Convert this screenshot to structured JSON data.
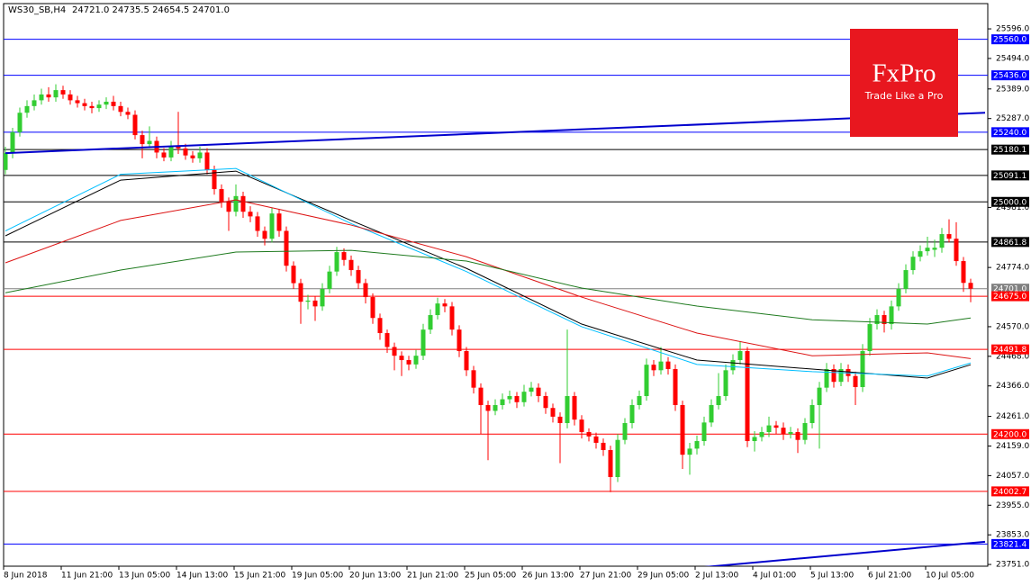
{
  "chart_data": {
    "type": "candlestick",
    "title": "WS30_SB,H4",
    "subtitle": "24721.0 24735.5 24654.5 24701.0",
    "logo": {
      "brand": "FxPro",
      "tagline": "Trade Like a Pro"
    },
    "ylim": [
      23745,
      25683
    ],
    "yticks": [
      {
        "value": 25596,
        "label": "25596.0"
      },
      {
        "value": 25494,
        "label": "25494.0"
      },
      {
        "value": 25389,
        "label": "25389.0"
      },
      {
        "value": 25287,
        "label": "25287.0"
      },
      {
        "value": 24981,
        "label": "24981.0"
      },
      {
        "value": 24774,
        "label": "24774.0"
      },
      {
        "value": 24570,
        "label": "24570.0"
      },
      {
        "value": 24468,
        "label": "24468.0"
      },
      {
        "value": 24366,
        "label": "24366.0"
      },
      {
        "value": 24261,
        "label": "24261.0"
      },
      {
        "value": 24159,
        "label": "24159.0"
      },
      {
        "value": 24057,
        "label": "24057.0"
      },
      {
        "value": 23955,
        "label": "23955.0"
      },
      {
        "value": 23853,
        "label": "23853.0"
      },
      {
        "value": 23751,
        "label": "23751.0"
      }
    ],
    "up_color": "#32cd32",
    "down_color": "#ff0000",
    "categories": [
      "8 Jun 2018",
      null,
      null,
      null,
      null,
      null,
      null,
      null,
      "11 Jun 21:00",
      null,
      null,
      null,
      null,
      null,
      null,
      null,
      "13 Jun 05:00",
      null,
      null,
      null,
      null,
      null,
      null,
      null,
      "14 Jun 13:00",
      null,
      null,
      null,
      null,
      null,
      null,
      null,
      "15 Jun 21:00",
      null,
      null,
      null,
      null,
      null,
      null,
      null,
      "19 Jun 05:00",
      null,
      null,
      null,
      null,
      null,
      null,
      null,
      "20 Jun 13:00",
      null,
      null,
      null,
      null,
      null,
      null,
      null,
      "21 Jun 21:00",
      null,
      null,
      null,
      null,
      null,
      null,
      null,
      "25 Jun 05:00",
      null,
      null,
      null,
      null,
      null,
      null,
      null,
      "26 Jun 13:00",
      null,
      null,
      null,
      null,
      null,
      null,
      null,
      "27 Jun 21:00",
      null,
      null,
      null,
      null,
      null,
      null,
      null,
      "29 Jun 05:00",
      null,
      null,
      null,
      null,
      null,
      null,
      null,
      "2 Jul 13:00",
      null,
      null,
      null,
      null,
      null,
      null,
      null,
      "4 Jul 01:00",
      null,
      null,
      null,
      null,
      null,
      null,
      null,
      "5 Jul 13:00",
      null,
      null,
      null,
      null,
      null,
      null,
      null,
      "6 Jul 21:00",
      null,
      null,
      null,
      null,
      null,
      null,
      null,
      "10 Jul 05:00",
      null,
      null,
      null,
      null,
      null,
      null
    ],
    "candles": [
      [
        25110,
        25190,
        25095,
        25168
      ],
      [
        25168,
        25255,
        25150,
        25240
      ],
      [
        25240,
        25325,
        25225,
        25307
      ],
      [
        25307,
        25350,
        25290,
        25330
      ],
      [
        25330,
        25370,
        25315,
        25350
      ],
      [
        25350,
        25390,
        25335,
        25370
      ],
      [
        25370,
        25395,
        25345,
        25360
      ],
      [
        25360,
        25405,
        25345,
        25385
      ],
      [
        25385,
        25400,
        25355,
        25370
      ],
      [
        25370,
        25385,
        25335,
        25350
      ],
      [
        25350,
        25365,
        25325,
        25340
      ],
      [
        25340,
        25355,
        25315,
        25330
      ],
      [
        25330,
        25345,
        25305,
        25323
      ],
      [
        25323,
        25350,
        25310,
        25335
      ],
      [
        25335,
        25360,
        25320,
        25345
      ],
      [
        25345,
        25365,
        25315,
        25330
      ],
      [
        25330,
        25345,
        25295,
        25310
      ],
      [
        25310,
        25325,
        25285,
        25300
      ],
      [
        25300,
        25315,
        25215,
        25230
      ],
      [
        25230,
        25245,
        25150,
        25199
      ],
      [
        25199,
        25260,
        25185,
        25210
      ],
      [
        25210,
        25225,
        25150,
        25170
      ],
      [
        25170,
        25185,
        25140,
        25153
      ],
      [
        25153,
        25210,
        25140,
        25190
      ],
      [
        25190,
        25310,
        25165,
        25184
      ],
      [
        25184,
        25200,
        25145,
        25160
      ],
      [
        25160,
        25175,
        25135,
        25150
      ],
      [
        25150,
        25190,
        25135,
        25170
      ],
      [
        25170,
        25185,
        25095,
        25110
      ],
      [
        25110,
        25125,
        25025,
        25044
      ],
      [
        25044,
        25060,
        24980,
        25000
      ],
      [
        25000,
        25015,
        24900,
        24966
      ],
      [
        24966,
        25060,
        24950,
        25020
      ],
      [
        25020,
        25035,
        24945,
        24966
      ],
      [
        24966,
        24985,
        24930,
        24950
      ],
      [
        24950,
        24965,
        24880,
        24900
      ],
      [
        24900,
        24915,
        24850,
        24873
      ],
      [
        24873,
        24980,
        24860,
        24960
      ],
      [
        24960,
        24975,
        24880,
        24900
      ],
      [
        24900,
        24915,
        24760,
        24780
      ],
      [
        24780,
        24795,
        24700,
        24720
      ],
      [
        24720,
        24735,
        24580,
        24656
      ],
      [
        24656,
        24680,
        24630,
        24660
      ],
      [
        24660,
        24675,
        24590,
        24640
      ],
      [
        24640,
        24720,
        24625,
        24700
      ],
      [
        24700,
        24780,
        24685,
        24760
      ],
      [
        24760,
        24845,
        24745,
        24827
      ],
      [
        24827,
        24840,
        24780,
        24800
      ],
      [
        24800,
        24815,
        24745,
        24765
      ],
      [
        24765,
        24780,
        24700,
        24720
      ],
      [
        24720,
        24735,
        24650,
        24672
      ],
      [
        24672,
        24685,
        24580,
        24600
      ],
      [
        24600,
        24615,
        24525,
        24548
      ],
      [
        24548,
        24560,
        24480,
        24500
      ],
      [
        24500,
        24515,
        24420,
        24470
      ],
      [
        24470,
        24485,
        24400,
        24455
      ],
      [
        24455,
        24470,
        24420,
        24440
      ],
      [
        24440,
        24490,
        24425,
        24470
      ],
      [
        24470,
        24580,
        24455,
        24560
      ],
      [
        24560,
        24630,
        24545,
        24610
      ],
      [
        24610,
        24670,
        24595,
        24650
      ],
      [
        24650,
        24665,
        24620,
        24640
      ],
      [
        24640,
        24655,
        24540,
        24560
      ],
      [
        24560,
        24575,
        24465,
        24486
      ],
      [
        24486,
        24500,
        24400,
        24420
      ],
      [
        24420,
        24435,
        24340,
        24360
      ],
      [
        24360,
        24375,
        24200,
        24300
      ],
      [
        24300,
        24315,
        24110,
        24280
      ],
      [
        24280,
        24320,
        24265,
        24300
      ],
      [
        24300,
        24340,
        24285,
        24320
      ],
      [
        24320,
        24350,
        24305,
        24331
      ],
      [
        24331,
        24345,
        24290,
        24310
      ],
      [
        24310,
        24370,
        24295,
        24346
      ],
      [
        24346,
        24380,
        24330,
        24360
      ],
      [
        24360,
        24375,
        24310,
        24331
      ],
      [
        24331,
        24345,
        24270,
        24290
      ],
      [
        24290,
        24305,
        24240,
        24260
      ],
      [
        24260,
        24275,
        24100,
        24238
      ],
      [
        24238,
        24560,
        24220,
        24331
      ],
      [
        24331,
        24345,
        24230,
        24250
      ],
      [
        24250,
        24265,
        24185,
        24207
      ],
      [
        24207,
        24220,
        24175,
        24192
      ],
      [
        24192,
        24205,
        24150,
        24170
      ],
      [
        24170,
        24185,
        24125,
        24145
      ],
      [
        24145,
        24160,
        24000,
        24052
      ],
      [
        24052,
        24200,
        24035,
        24180
      ],
      [
        24180,
        24255,
        24165,
        24238
      ],
      [
        24238,
        24320,
        24220,
        24300
      ],
      [
        24300,
        24350,
        24285,
        24331
      ],
      [
        24331,
        24460,
        24315,
        24439
      ],
      [
        24439,
        24455,
        24400,
        24420
      ],
      [
        24420,
        24500,
        24405,
        24450
      ],
      [
        24450,
        24465,
        24405,
        24424
      ],
      [
        24424,
        24440,
        24280,
        24300
      ],
      [
        24300,
        24315,
        24080,
        24129
      ],
      [
        24129,
        24170,
        24060,
        24150
      ],
      [
        24150,
        24195,
        24130,
        24176
      ],
      [
        24176,
        24260,
        24160,
        24240
      ],
      [
        24240,
        24320,
        24225,
        24300
      ],
      [
        24300,
        24410,
        24285,
        24331
      ],
      [
        24331,
        24440,
        24315,
        24420
      ],
      [
        24420,
        24475,
        24405,
        24455
      ],
      [
        24455,
        24520,
        24440,
        24486
      ],
      [
        24486,
        24500,
        24155,
        24176
      ],
      [
        24176,
        24210,
        24140,
        24190
      ],
      [
        24190,
        24225,
        24175,
        24207
      ],
      [
        24207,
        24260,
        24190,
        24230
      ],
      [
        24230,
        24245,
        24200,
        24222
      ],
      [
        24222,
        24240,
        24180,
        24200
      ],
      [
        24200,
        24225,
        24185,
        24207
      ],
      [
        24207,
        24220,
        24135,
        24180
      ],
      [
        24180,
        24255,
        24165,
        24238
      ],
      [
        24238,
        24320,
        24220,
        24300
      ],
      [
        24300,
        24380,
        24150,
        24360
      ],
      [
        24360,
        24445,
        24345,
        24424
      ],
      [
        24424,
        24440,
        24360,
        24380
      ],
      [
        24380,
        24445,
        24365,
        24424
      ],
      [
        24424,
        24440,
        24380,
        24400
      ],
      [
        24400,
        24415,
        24300,
        24362
      ],
      [
        24362,
        24510,
        24345,
        24486
      ],
      [
        24486,
        24600,
        24470,
        24579
      ],
      [
        24579,
        24630,
        24560,
        24610
      ],
      [
        24610,
        24625,
        24550,
        24579
      ],
      [
        24579,
        24660,
        24560,
        24640
      ],
      [
        24640,
        24720,
        24625,
        24700
      ],
      [
        24700,
        24785,
        24685,
        24765
      ],
      [
        24765,
        24830,
        24750,
        24811
      ],
      [
        24811,
        24850,
        24795,
        24830
      ],
      [
        24830,
        24880,
        24815,
        24842
      ],
      [
        24835,
        24870,
        24810,
        24842
      ],
      [
        24842,
        24910,
        24825,
        24889
      ],
      [
        24889,
        24940,
        24860,
        24873
      ],
      [
        24873,
        24930,
        24780,
        24796
      ],
      [
        24796,
        24810,
        24690,
        24721
      ],
      [
        24721,
        24735.5,
        24654.5,
        24701
      ]
    ],
    "series": [
      {
        "color": "#000000",
        "x": [
          0,
          16,
          32,
          48,
          64,
          80,
          96,
          112,
          128,
          134
        ],
        "values": [
          24883,
          25075,
          25106,
          24936,
          24771,
          24579,
          24455,
          24424,
          24393,
          24439
        ]
      },
      {
        "color": "#00bfff",
        "x": [
          0,
          16,
          32,
          48,
          64,
          80,
          96,
          112,
          128,
          134
        ],
        "values": [
          24900,
          25095,
          25115,
          24925,
          24760,
          24570,
          24440,
          24415,
          24400,
          24445
        ]
      },
      {
        "color": "#dc1414",
        "x": [
          0,
          16,
          32,
          48,
          64,
          80,
          96,
          112,
          128,
          134
        ],
        "values": [
          24790,
          24936,
          25007,
          24920,
          24811,
          24672,
          24548,
          24470,
          24480,
          24460
        ]
      },
      {
        "color": "#1e7a1e",
        "x": [
          0,
          16,
          32,
          48,
          64,
          80,
          96,
          112,
          128,
          134
        ],
        "values": [
          24687,
          24765,
          24827,
          24833,
          24796,
          24703,
          24641,
          24594,
          24579,
          24600
        ]
      }
    ],
    "trendlines": [
      {
        "color": "#0000cd",
        "x": [
          0,
          136
        ],
        "values": [
          25168,
          25307
        ]
      },
      {
        "color": "#0000cd",
        "x": [
          97,
          136
        ],
        "values": [
          23742,
          23829
        ]
      }
    ],
    "levels": [
      {
        "value": 25560,
        "label": "25560.0",
        "color": "#0000ff"
      },
      {
        "value": 25436,
        "label": "25436.0",
        "color": "#0000ff"
      },
      {
        "value": 25240,
        "label": "25240.0",
        "color": "#0000ff"
      },
      {
        "value": 25180.1,
        "label": "25180.1",
        "color": "#000000"
      },
      {
        "value": 25091.1,
        "label": "25091.1",
        "color": "#000000"
      },
      {
        "value": 25000,
        "label": "25000.0",
        "color": "#000000"
      },
      {
        "value": 24861.8,
        "label": "24861.8",
        "color": "#000000"
      },
      {
        "value": 24701,
        "label": "24701.0",
        "color": "#808080"
      },
      {
        "value": 24675,
        "label": "24675.0",
        "color": "#ff0000"
      },
      {
        "value": 24491.8,
        "label": "24491.8",
        "color": "#ff0000"
      },
      {
        "value": 24200,
        "label": "24200.0",
        "color": "#ff0000"
      },
      {
        "value": 24002.7,
        "label": "24002.7",
        "color": "#ff0000"
      },
      {
        "value": 23821.4,
        "label": "23821.4",
        "color": "#0000ff"
      }
    ]
  }
}
